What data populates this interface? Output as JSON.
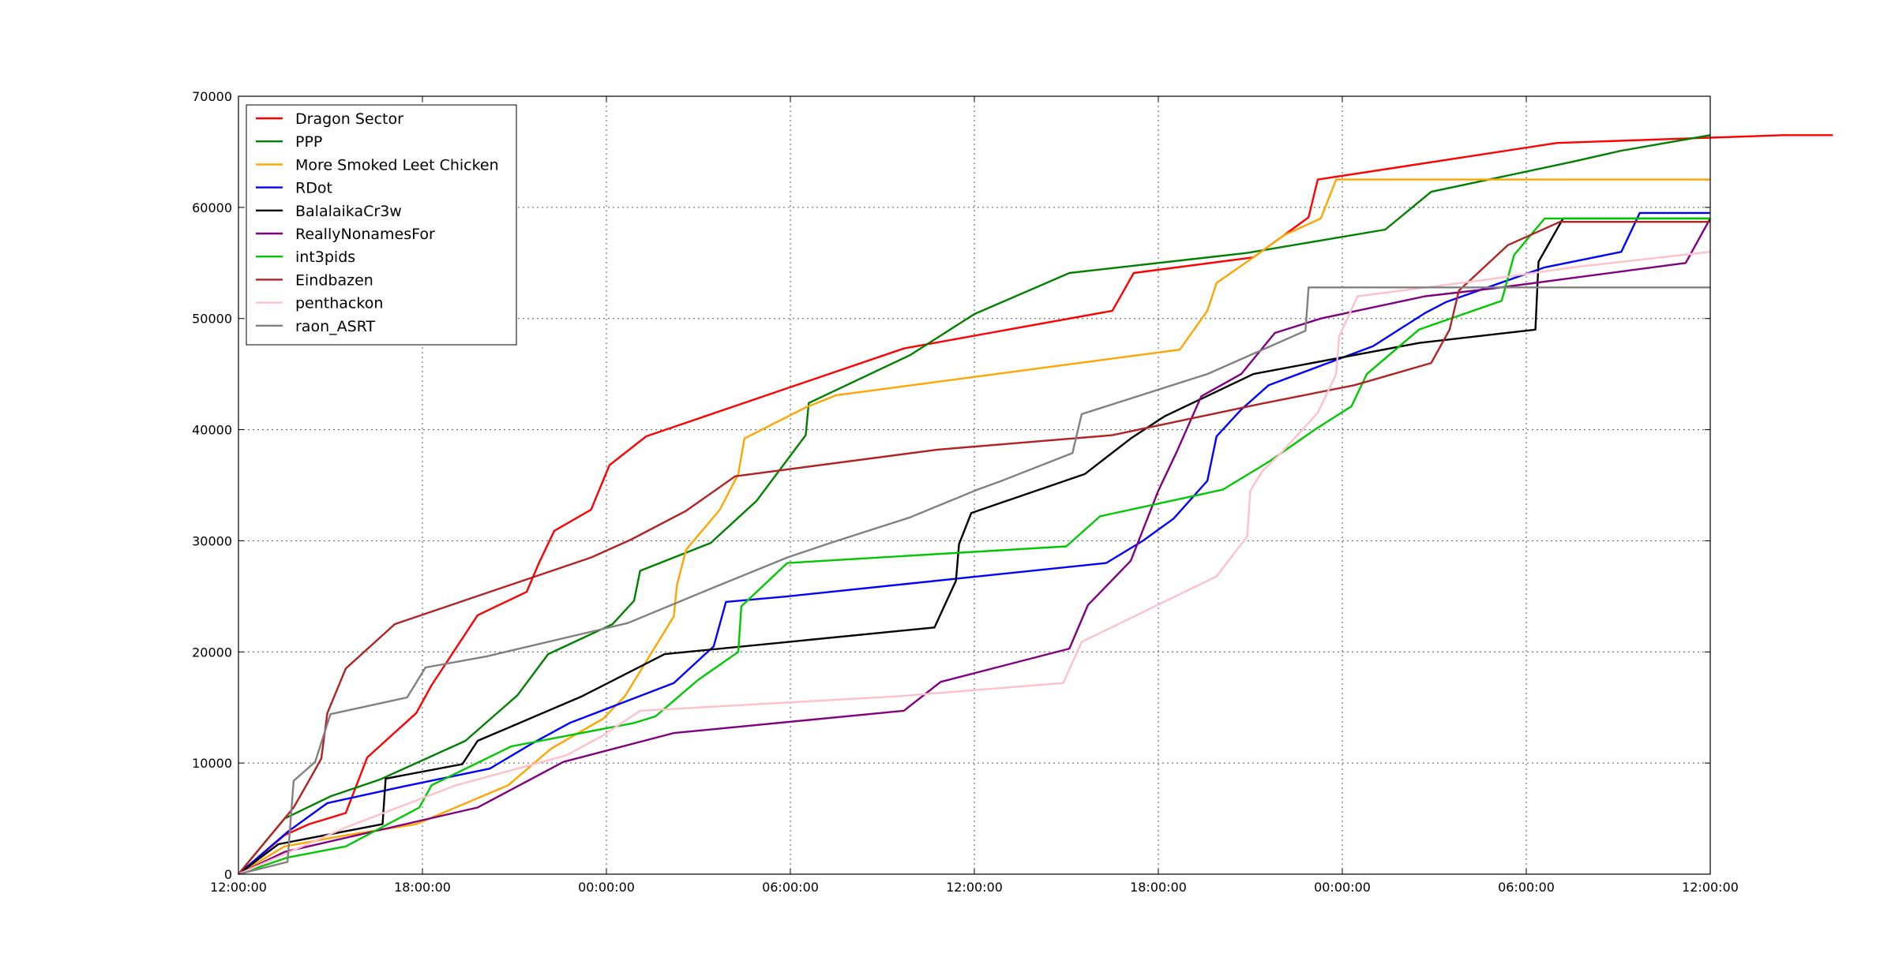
{
  "chart_data": {
    "type": "line",
    "title": "",
    "xlabel": "",
    "ylabel": "",
    "x_unit": "hours",
    "xlim": [
      0,
      48
    ],
    "ylim": [
      0,
      70000
    ],
    "grid": true,
    "legend_position": "top-left",
    "x_ticks": [
      {
        "value": 0,
        "label": "12:00:00"
      },
      {
        "value": 6,
        "label": "18:00:00"
      },
      {
        "value": 12,
        "label": "00:00:00"
      },
      {
        "value": 18,
        "label": "06:00:00"
      },
      {
        "value": 24,
        "label": "12:00:00"
      },
      {
        "value": 30,
        "label": "18:00:00"
      },
      {
        "value": 36,
        "label": "00:00:00"
      },
      {
        "value": 42,
        "label": "06:00:00"
      },
      {
        "value": 48,
        "label": "12:00:00"
      }
    ],
    "y_ticks": [
      {
        "value": 0,
        "label": "0"
      },
      {
        "value": 10000,
        "label": "10000"
      },
      {
        "value": 20000,
        "label": "20000"
      },
      {
        "value": 30000,
        "label": "30000"
      },
      {
        "value": 40000,
        "label": "40000"
      },
      {
        "value": 50000,
        "label": "50000"
      },
      {
        "value": 60000,
        "label": "60000"
      },
      {
        "value": 70000,
        "label": "70000"
      }
    ],
    "series": [
      {
        "name": "Dragon Sector",
        "color": "#ff0000",
        "points": [
          [
            0,
            0
          ],
          [
            1.5,
            3500
          ],
          [
            2.3,
            4500
          ],
          [
            3.5,
            5500
          ],
          [
            4.2,
            10500
          ],
          [
            5.8,
            14500
          ],
          [
            6.3,
            17000
          ],
          [
            7.8,
            23300
          ],
          [
            9.4,
            25400
          ],
          [
            9.8,
            28000
          ],
          [
            10.3,
            30900
          ],
          [
            11.5,
            32800
          ],
          [
            12.1,
            36800
          ],
          [
            13.3,
            39400
          ],
          [
            21.7,
            47300
          ],
          [
            28.5,
            50700
          ],
          [
            29.2,
            54100
          ],
          [
            33.1,
            55500
          ],
          [
            34.9,
            59100
          ],
          [
            35.2,
            62500
          ],
          [
            43,
            65800
          ],
          [
            50.4,
            66500
          ],
          [
            52,
            66500
          ]
        ]
      },
      {
        "name": "PPP",
        "color": "#008000",
        "points": [
          [
            0,
            0
          ],
          [
            1.5,
            5000
          ],
          [
            3,
            7000
          ],
          [
            4.6,
            8500
          ],
          [
            7.4,
            12000
          ],
          [
            9.1,
            16100
          ],
          [
            10.1,
            19800
          ],
          [
            12.2,
            22500
          ],
          [
            12.9,
            24600
          ],
          [
            13.1,
            27300
          ],
          [
            15.4,
            29800
          ],
          [
            16.9,
            33600
          ],
          [
            18.5,
            39500
          ],
          [
            18.6,
            42400
          ],
          [
            21.9,
            46700
          ],
          [
            24,
            50400
          ],
          [
            27.1,
            54100
          ],
          [
            32.9,
            55900
          ],
          [
            37.4,
            58000
          ],
          [
            38.9,
            61400
          ],
          [
            43.5,
            64100
          ],
          [
            45.1,
            65100
          ],
          [
            48,
            66500
          ]
        ]
      },
      {
        "name": "More Smoked Leet Chicken",
        "color": "#ffa500",
        "points": [
          [
            0,
            0
          ],
          [
            1.5,
            2500
          ],
          [
            3.5,
            3500
          ],
          [
            5.8,
            4500
          ],
          [
            8.8,
            8000
          ],
          [
            10.2,
            11300
          ],
          [
            11.9,
            14000
          ],
          [
            12.6,
            16000
          ],
          [
            14.2,
            23200
          ],
          [
            14.3,
            26000
          ],
          [
            14.6,
            29200
          ],
          [
            15.7,
            32800
          ],
          [
            16.3,
            36000
          ],
          [
            16.5,
            39200
          ],
          [
            18.5,
            42000
          ],
          [
            19.5,
            43100
          ],
          [
            30.7,
            47200
          ],
          [
            31.6,
            50700
          ],
          [
            31.9,
            53200
          ],
          [
            33.1,
            55500
          ],
          [
            34.1,
            57500
          ],
          [
            35.3,
            59000
          ],
          [
            35.8,
            62500
          ],
          [
            42,
            62500
          ],
          [
            48,
            62500
          ]
        ]
      },
      {
        "name": "RDot",
        "color": "#0000ff",
        "points": [
          [
            0,
            0
          ],
          [
            1.6,
            3800
          ],
          [
            2.9,
            6400
          ],
          [
            5.4,
            7900
          ],
          [
            8.2,
            9500
          ],
          [
            9.6,
            11800
          ],
          [
            10.8,
            13600
          ],
          [
            14.2,
            17200
          ],
          [
            15.5,
            20500
          ],
          [
            15.9,
            24500
          ],
          [
            17.9,
            25000
          ],
          [
            28.3,
            28000
          ],
          [
            29.5,
            30000
          ],
          [
            30.5,
            32000
          ],
          [
            31.6,
            35400
          ],
          [
            31.9,
            39400
          ],
          [
            32.7,
            41800
          ],
          [
            33.6,
            44000
          ],
          [
            37,
            47500
          ],
          [
            38.7,
            50500
          ],
          [
            39.4,
            51500
          ],
          [
            42.6,
            54600
          ],
          [
            45.1,
            56000
          ],
          [
            45.7,
            59500
          ],
          [
            48,
            59500
          ]
        ]
      },
      {
        "name": "BalalaikaCr3w",
        "color": "#000000",
        "points": [
          [
            0,
            0
          ],
          [
            1.3,
            2700
          ],
          [
            4.7,
            4500
          ],
          [
            4.8,
            8600
          ],
          [
            7.3,
            9900
          ],
          [
            7.8,
            12000
          ],
          [
            11.2,
            16000
          ],
          [
            13.9,
            19800
          ],
          [
            22.7,
            22200
          ],
          [
            23.4,
            26400
          ],
          [
            23.5,
            29700
          ],
          [
            23.9,
            32500
          ],
          [
            27.6,
            36000
          ],
          [
            29.1,
            39200
          ],
          [
            30.2,
            41200
          ],
          [
            33.1,
            45000
          ],
          [
            38.5,
            47800
          ],
          [
            42.3,
            49000
          ],
          [
            42.4,
            55100
          ],
          [
            43.2,
            59000
          ],
          [
            48,
            59000
          ]
        ]
      },
      {
        "name": "ReallyNonamesFor",
        "color": "#800080",
        "points": [
          [
            0,
            0
          ],
          [
            1.5,
            2000
          ],
          [
            7.8,
            6000
          ],
          [
            10.6,
            10100
          ],
          [
            14.2,
            12700
          ],
          [
            21.7,
            14700
          ],
          [
            22.9,
            17300
          ],
          [
            27.1,
            20300
          ],
          [
            27.7,
            24200
          ],
          [
            29.1,
            28200
          ],
          [
            30,
            34500
          ],
          [
            30.6,
            38000
          ],
          [
            31.4,
            43000
          ],
          [
            32.7,
            45000
          ],
          [
            33.8,
            48700
          ],
          [
            35.3,
            50000
          ],
          [
            38.7,
            52000
          ],
          [
            40.9,
            52700
          ],
          [
            47.2,
            55000
          ],
          [
            48,
            59000
          ]
        ]
      },
      {
        "name": "int3pids",
        "color": "#00c800",
        "points": [
          [
            0,
            0
          ],
          [
            1.6,
            1500
          ],
          [
            3.5,
            2500
          ],
          [
            5.9,
            6000
          ],
          [
            6.3,
            8000
          ],
          [
            8.9,
            11500
          ],
          [
            12.9,
            13600
          ],
          [
            13.6,
            14200
          ],
          [
            15,
            17500
          ],
          [
            16.3,
            20000
          ],
          [
            16.4,
            24100
          ],
          [
            17.9,
            28000
          ],
          [
            27,
            29500
          ],
          [
            28.1,
            32200
          ],
          [
            32.1,
            34600
          ],
          [
            33.6,
            37100
          ],
          [
            35.1,
            40000
          ],
          [
            36.3,
            42100
          ],
          [
            36.8,
            45000
          ],
          [
            38.5,
            49000
          ],
          [
            41.2,
            51600
          ],
          [
            41.6,
            55700
          ],
          [
            42.6,
            59000
          ],
          [
            44,
            59000
          ],
          [
            48,
            59000
          ]
        ]
      },
      {
        "name": "Eindbazen",
        "color": "#b22222",
        "points": [
          [
            0,
            0
          ],
          [
            1.8,
            6000
          ],
          [
            2.4,
            8900
          ],
          [
            2.7,
            10400
          ],
          [
            2.9,
            14500
          ],
          [
            3.5,
            18500
          ],
          [
            5.1,
            22500
          ],
          [
            11.5,
            28500
          ],
          [
            12.8,
            30100
          ],
          [
            14.6,
            32700
          ],
          [
            16.2,
            35800
          ],
          [
            22.8,
            38200
          ],
          [
            28.5,
            39500
          ],
          [
            33.3,
            42300
          ],
          [
            36.4,
            44000
          ],
          [
            38.9,
            46000
          ],
          [
            39.5,
            49000
          ],
          [
            39.8,
            52500
          ],
          [
            41.4,
            56600
          ],
          [
            43.1,
            58700
          ],
          [
            48,
            58700
          ]
        ]
      },
      {
        "name": "penthackon",
        "color": "#ffc0cb",
        "points": [
          [
            0,
            0
          ],
          [
            3.5,
            4200
          ],
          [
            7.1,
            8000
          ],
          [
            10.7,
            10700
          ],
          [
            11.9,
            12500
          ],
          [
            13.1,
            14700
          ],
          [
            21.5,
            16000
          ],
          [
            26.9,
            17200
          ],
          [
            27.5,
            20900
          ],
          [
            31.9,
            26800
          ],
          [
            32.9,
            30400
          ],
          [
            33,
            34500
          ],
          [
            33.4,
            36300
          ],
          [
            34,
            37900
          ],
          [
            35.2,
            41500
          ],
          [
            35.8,
            45000
          ],
          [
            35.9,
            48400
          ],
          [
            36.5,
            52000
          ],
          [
            40.7,
            53500
          ],
          [
            43.5,
            54600
          ],
          [
            48,
            56000
          ]
        ]
      },
      {
        "name": "raon_ASRT",
        "color": "#808080",
        "points": [
          [
            0,
            0
          ],
          [
            1.6,
            1100
          ],
          [
            1.8,
            8400
          ],
          [
            2.5,
            10100
          ],
          [
            3,
            14400
          ],
          [
            5.5,
            15900
          ],
          [
            6.1,
            18600
          ],
          [
            8.1,
            19600
          ],
          [
            12.7,
            22600
          ],
          [
            15.5,
            25800
          ],
          [
            17.9,
            28500
          ],
          [
            19.3,
            29800
          ],
          [
            21.9,
            32100
          ],
          [
            24.1,
            34600
          ],
          [
            24.8,
            35300
          ],
          [
            27.2,
            37900
          ],
          [
            27.5,
            41400
          ],
          [
            31.6,
            45000
          ],
          [
            34.8,
            48900
          ],
          [
            34.9,
            52800
          ],
          [
            48,
            52800
          ]
        ]
      }
    ]
  }
}
